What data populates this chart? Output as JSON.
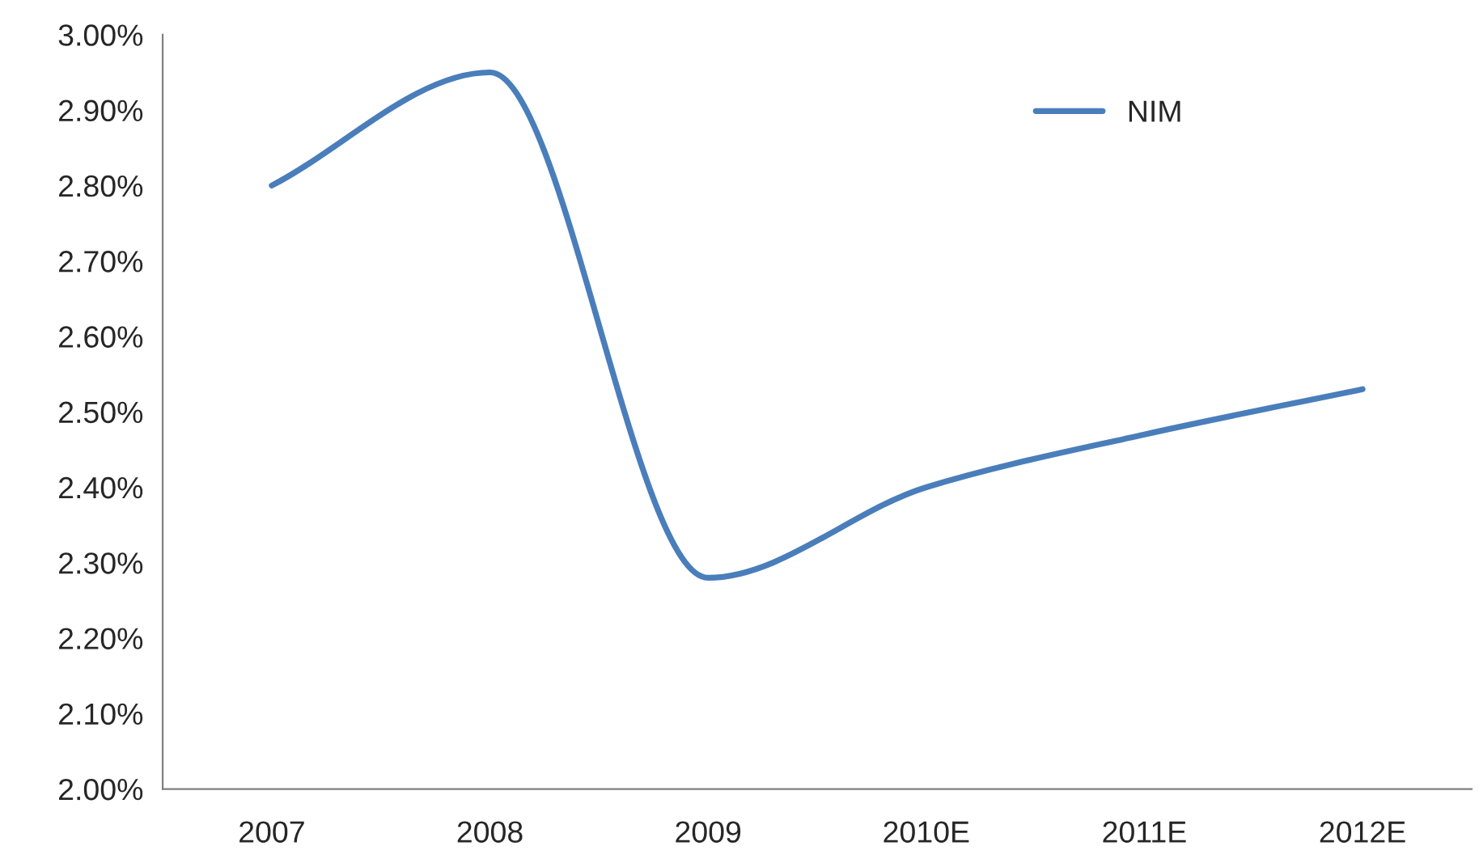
{
  "chart_data": {
    "type": "line",
    "categories": [
      "2007",
      "2008",
      "2009",
      "2010E",
      "2011E",
      "2012E"
    ],
    "series": [
      {
        "name": "NIM",
        "color": "#4a7ebb",
        "values": [
          2.8,
          2.95,
          2.28,
          2.4,
          2.47,
          2.53
        ]
      }
    ],
    "ylim": [
      2.0,
      3.0
    ],
    "yticks": [
      {
        "value": 2.0,
        "label": "2.00%"
      },
      {
        "value": 2.1,
        "label": "2.10%"
      },
      {
        "value": 2.2,
        "label": "2.20%"
      },
      {
        "value": 2.3,
        "label": "2.30%"
      },
      {
        "value": 2.4,
        "label": "2.40%"
      },
      {
        "value": 2.5,
        "label": "2.50%"
      },
      {
        "value": 2.6,
        "label": "2.60%"
      },
      {
        "value": 2.7,
        "label": "2.70%"
      },
      {
        "value": 2.8,
        "label": "2.80%"
      },
      {
        "value": 2.9,
        "label": "2.90%"
      },
      {
        "value": 3.0,
        "label": "3.00%"
      }
    ],
    "grid": false,
    "legend": "top right",
    "line_style": "solid",
    "marker": "none"
  }
}
